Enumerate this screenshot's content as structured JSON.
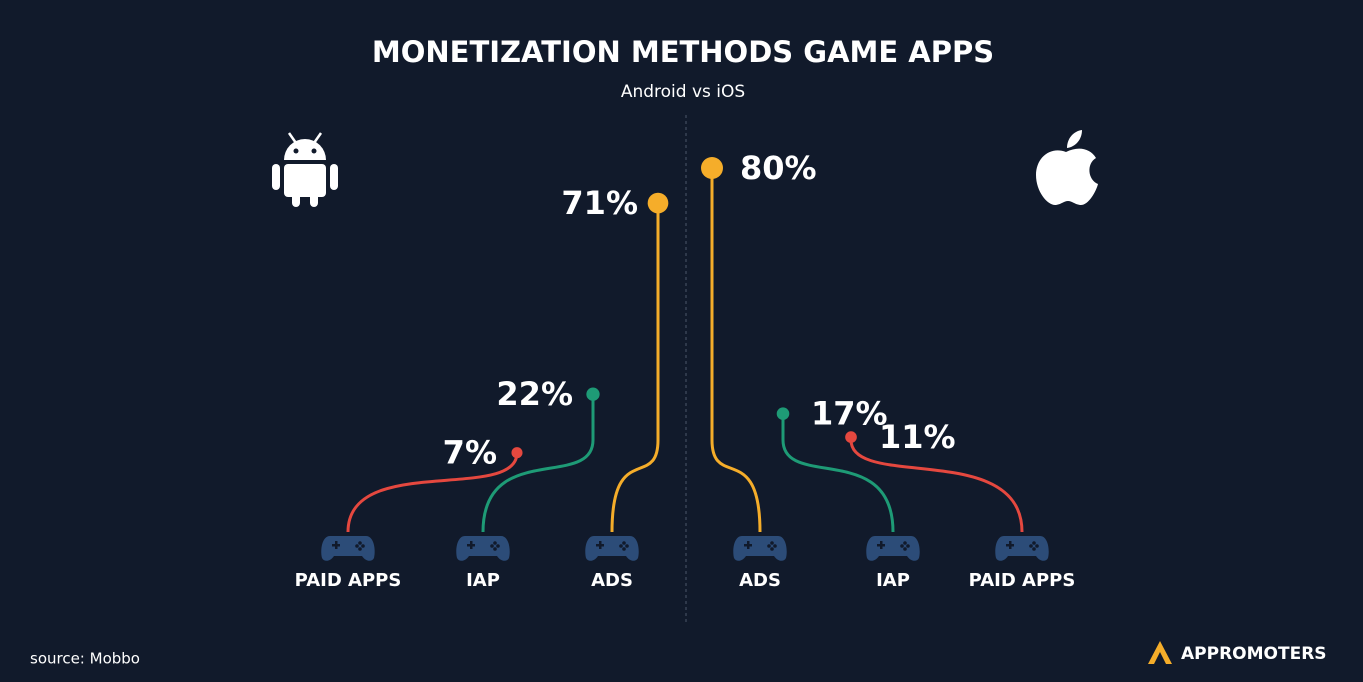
{
  "chart_data": {
    "type": "lollipop",
    "title": "MONETIZATION METHODS GAME APPS",
    "subtitle": "Android vs iOS",
    "groups": [
      {
        "categories": [
          "PAID APPS",
          "IAP",
          "ADS"
        ],
        "values": [
          7,
          22,
          71
        ],
        "value_labels": [
          "7%",
          "22%",
          "71%"
        ],
        "colors": [
          "#e5483f",
          "#1e9b76",
          "#f5ad2a"
        ]
      },
      {
        "categories": [
          "ADS",
          "IAP",
          "PAID APPS"
        ],
        "values": [
          80,
          17,
          11
        ],
        "value_labels": [
          "80%",
          "17%",
          "11%"
        ],
        "colors": [
          "#f5ad2a",
          "#1e9b76",
          "#e5483f"
        ]
      }
    ],
    "source": "source: Mobbo",
    "brand": "APPROMOTERS"
  }
}
